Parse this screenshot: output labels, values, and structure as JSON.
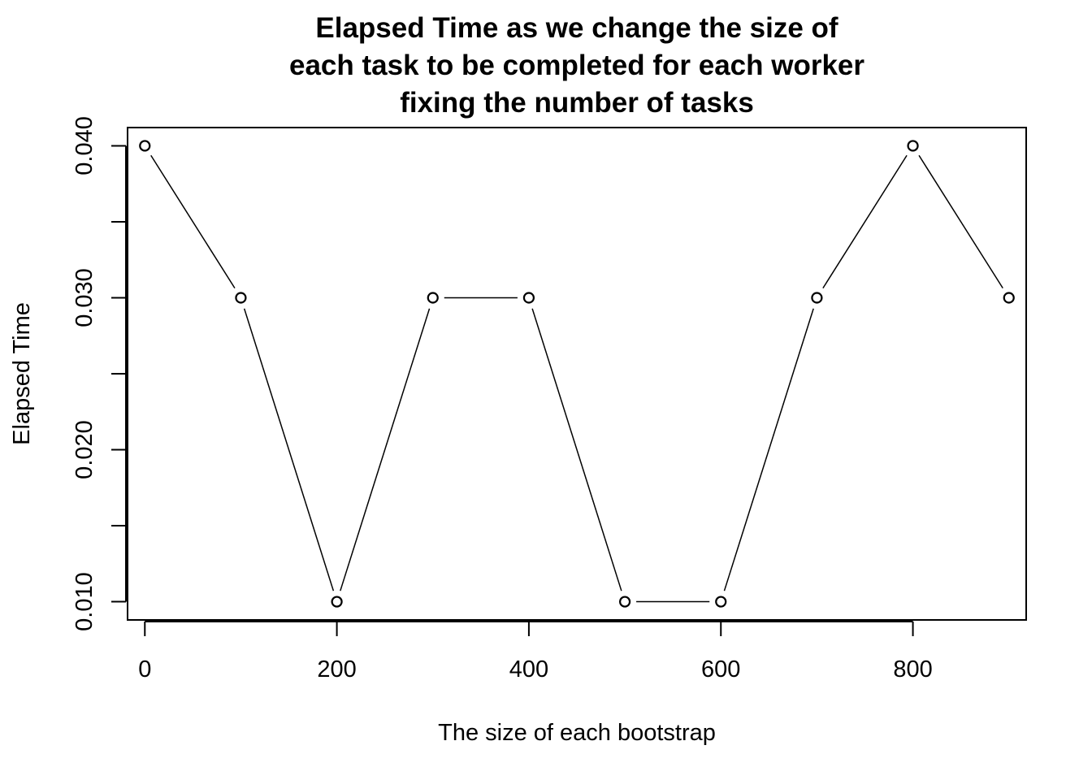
{
  "chart_data": {
    "type": "line",
    "title": [
      "Elapsed Time as we change the size of",
      "each task to be completed for each worker",
      "fixing the number of tasks"
    ],
    "xlabel": "The size of each bootstrap",
    "ylabel": "Elapsed Time",
    "x": [
      0,
      100,
      200,
      300,
      400,
      500,
      600,
      700,
      800,
      900
    ],
    "y": [
      0.04,
      0.03,
      0.01,
      0.03,
      0.03,
      0.01,
      0.01,
      0.03,
      0.04,
      0.03
    ],
    "xlim": [
      -18,
      918
    ],
    "ylim": [
      0.0088,
      0.0412
    ],
    "xticks": [
      0,
      200,
      400,
      600,
      800
    ],
    "xtick_labels": [
      "0",
      "200",
      "400",
      "600",
      "800"
    ],
    "yticks": [
      0.01,
      0.015,
      0.02,
      0.025,
      0.03,
      0.035,
      0.04
    ],
    "ytick_labels": [
      "0.010",
      "",
      "0.020",
      "",
      "0.030",
      "",
      "0.040"
    ],
    "marker": "open-circle",
    "line_style": "segments-with-gaps",
    "grid": false,
    "legend": false,
    "colors": {
      "line": "#000000",
      "marker_stroke": "#000000",
      "marker_fill": "#ffffff",
      "background": "#ffffff"
    }
  }
}
